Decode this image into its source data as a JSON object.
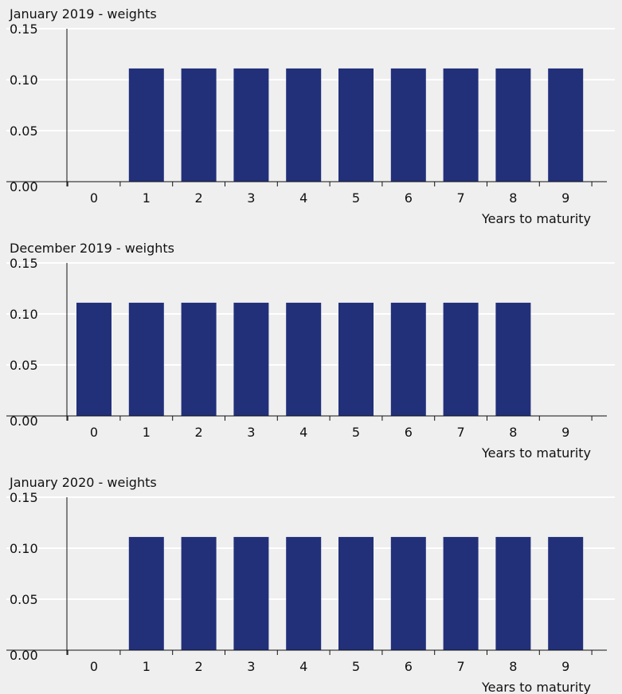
{
  "chart_data": [
    {
      "type": "bar",
      "title": "January 2019 - weights",
      "xlabel": "Years to maturity",
      "ylabel": "",
      "categories": [
        "0",
        "1",
        "2",
        "3",
        "4",
        "5",
        "6",
        "7",
        "8",
        "9"
      ],
      "values": [
        0,
        0.111,
        0.111,
        0.111,
        0.111,
        0.111,
        0.111,
        0.111,
        0.111,
        0.111
      ],
      "ylim": [
        0,
        0.15
      ],
      "yticks": [
        "0.00",
        "0.05",
        "0.10",
        "0.15"
      ],
      "grid": true,
      "bar_color": "#22307a"
    },
    {
      "type": "bar",
      "title": "December 2019 - weights",
      "xlabel": "Years to maturity",
      "ylabel": "",
      "categories": [
        "0",
        "1",
        "2",
        "3",
        "4",
        "5",
        "6",
        "7",
        "8",
        "9"
      ],
      "values": [
        0.111,
        0.111,
        0.111,
        0.111,
        0.111,
        0.111,
        0.111,
        0.111,
        0.111,
        0
      ],
      "ylim": [
        0,
        0.15
      ],
      "yticks": [
        "0.00",
        "0.05",
        "0.10",
        "0.15"
      ],
      "grid": true,
      "bar_color": "#22307a"
    },
    {
      "type": "bar",
      "title": "January 2020 - weights",
      "xlabel": "Years to maturity",
      "ylabel": "",
      "categories": [
        "0",
        "1",
        "2",
        "3",
        "4",
        "5",
        "6",
        "7",
        "8",
        "9"
      ],
      "values": [
        0,
        0.111,
        0.111,
        0.111,
        0.111,
        0.111,
        0.111,
        0.111,
        0.111,
        0.111
      ],
      "ylim": [
        0,
        0.15
      ],
      "yticks": [
        "0.00",
        "0.05",
        "0.10",
        "0.15"
      ],
      "grid": true,
      "bar_color": "#22307a"
    }
  ]
}
